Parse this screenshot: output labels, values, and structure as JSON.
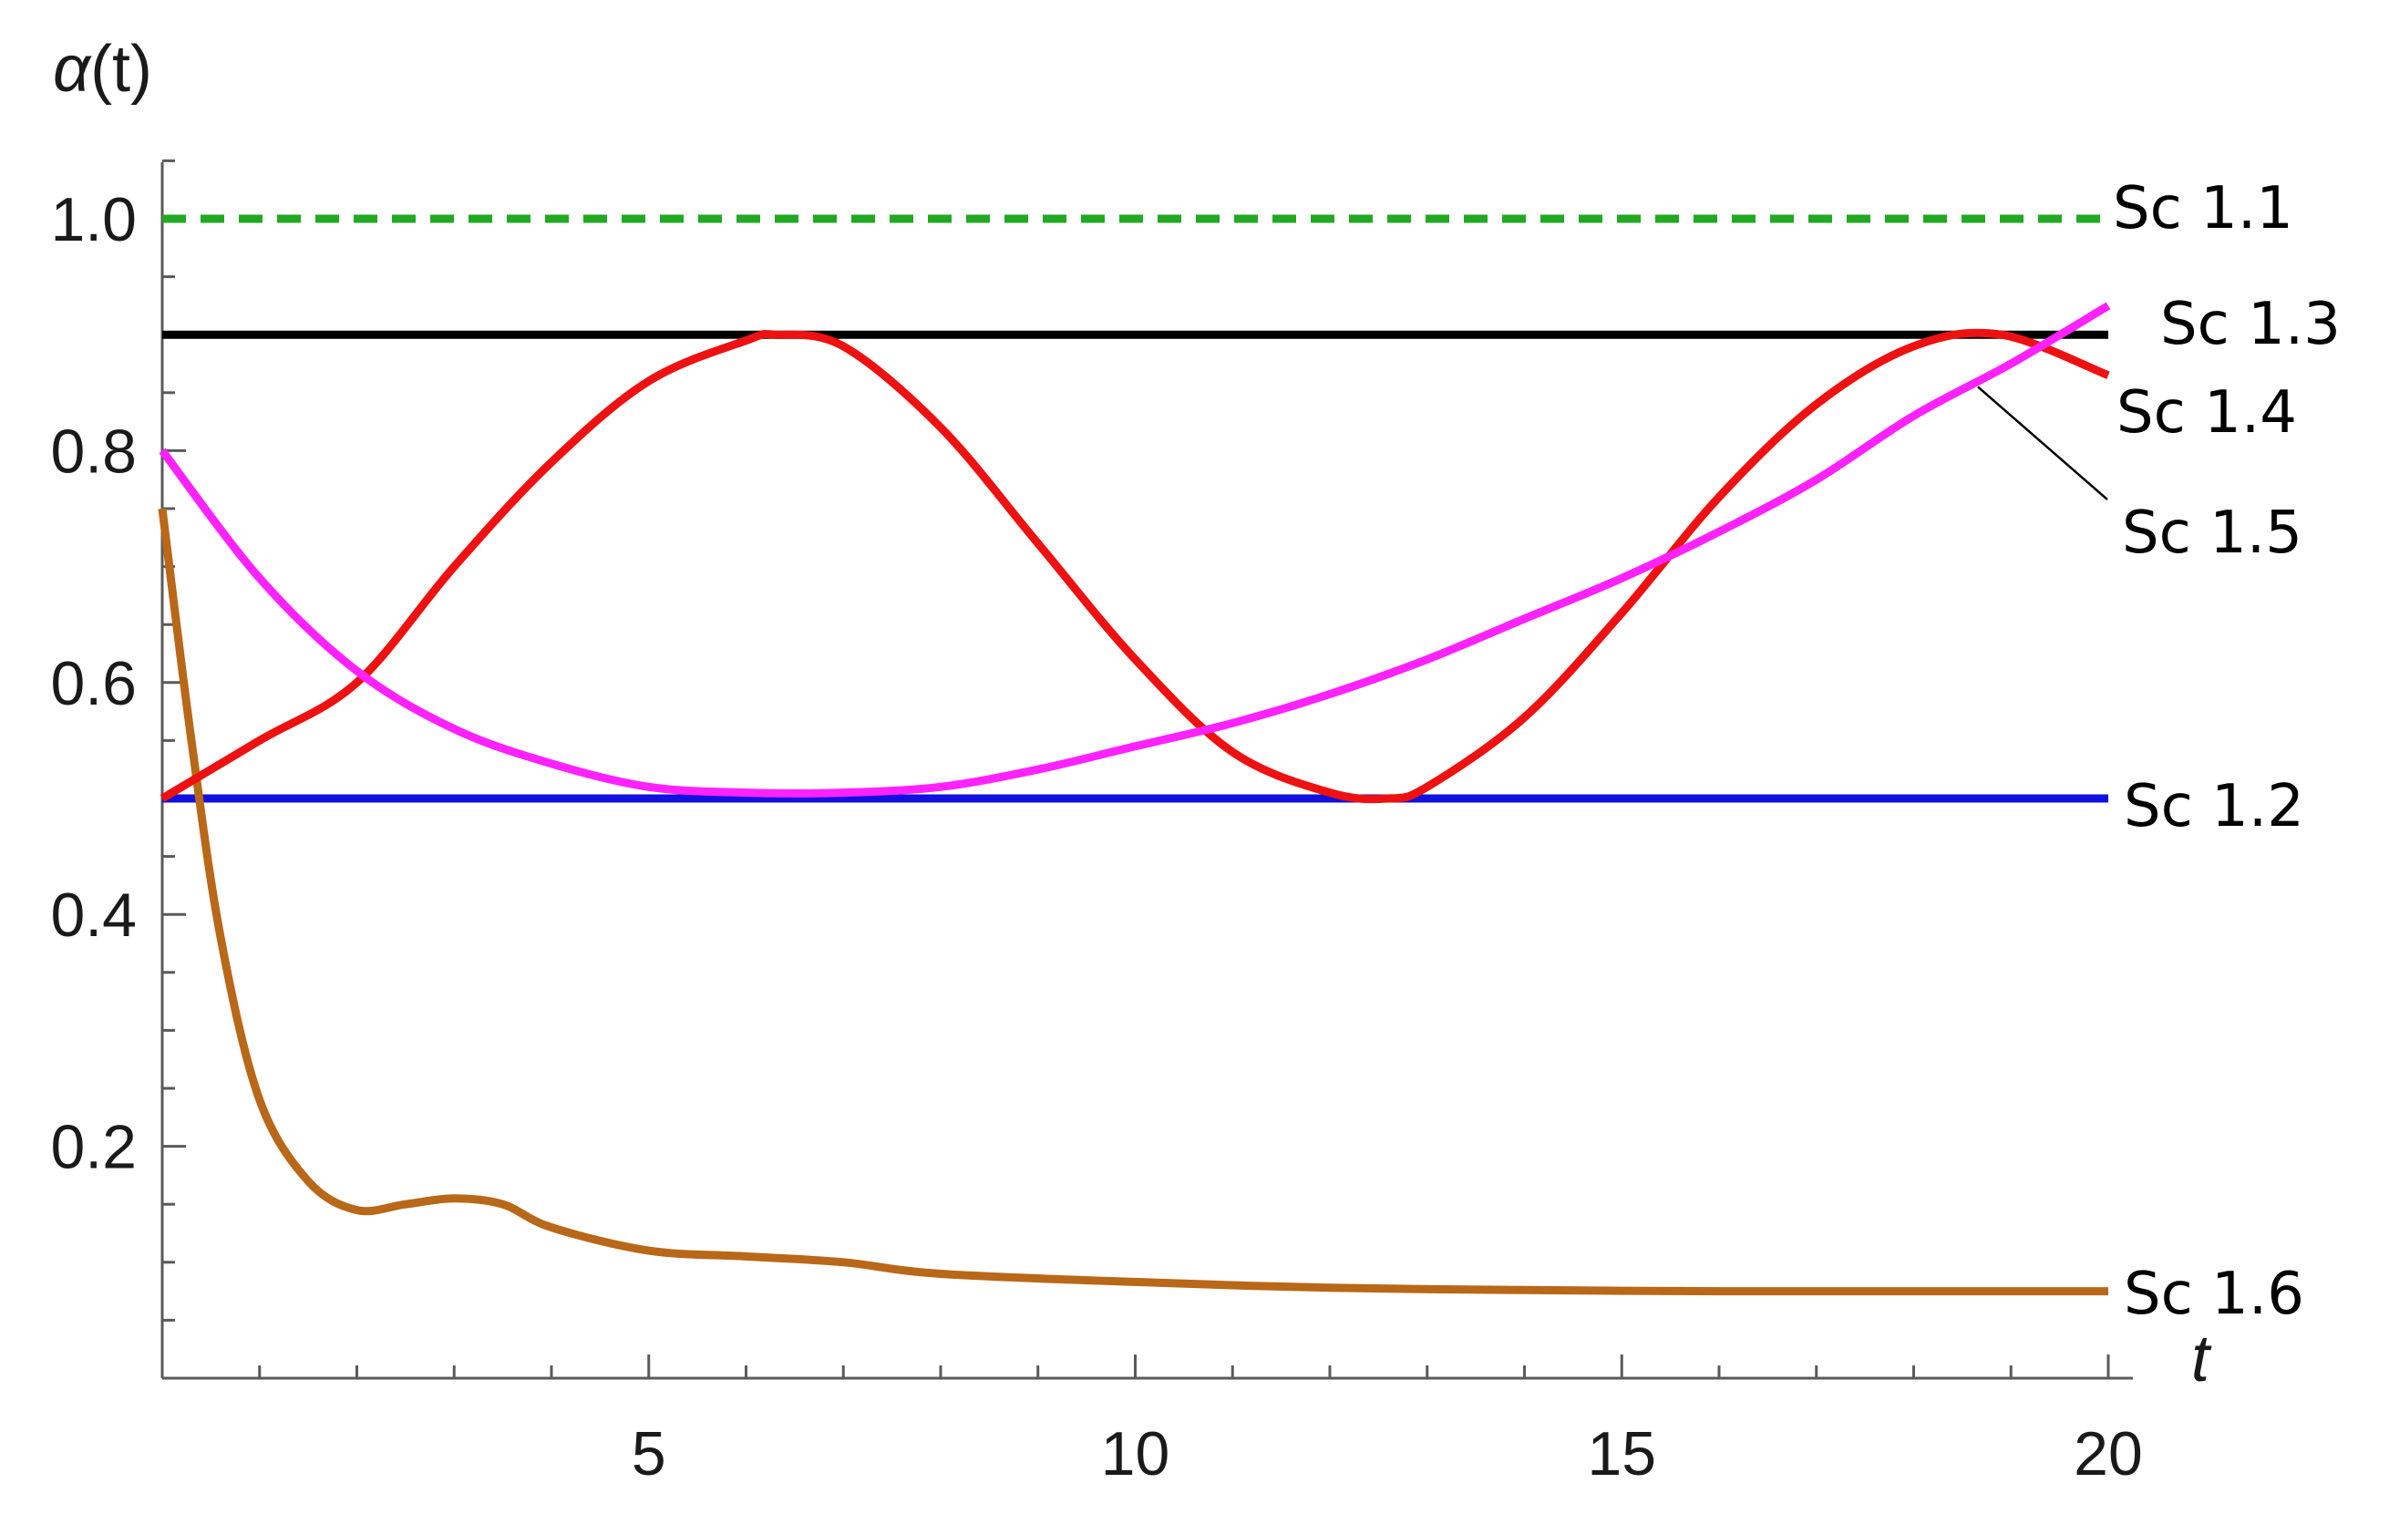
{
  "chart_data": {
    "type": "line",
    "title": "",
    "xlabel": "t",
    "ylabel": "α(t)",
    "ylabel_parts": {
      "symbol": "α",
      "arg": "(t)"
    },
    "xlim": [
      0,
      20
    ],
    "ylim": [
      0,
      1.05
    ],
    "x_ticks": [
      5,
      10,
      15,
      20
    ],
    "x_tick_labels": [
      "5",
      "10",
      "15",
      "20"
    ],
    "y_ticks": [
      0.2,
      0.4,
      0.6,
      0.8,
      1.0
    ],
    "y_tick_labels": [
      "0.2",
      "0.4",
      "0.6",
      "0.8",
      "1.0"
    ],
    "grid": false,
    "legend": "inline labels at right end of lines",
    "series": [
      {
        "name": "Sc 1.1",
        "color": "#22a822",
        "dash": "dashed",
        "x": [
          0,
          20
        ],
        "y": [
          1.0,
          1.0
        ]
      },
      {
        "name": "Sc 1.2",
        "color": "#1010e0",
        "dash": "solid",
        "x": [
          0,
          20
        ],
        "y": [
          0.5,
          0.5
        ]
      },
      {
        "name": "Sc 1.3",
        "color": "#000000",
        "dash": "solid",
        "x": [
          0,
          20
        ],
        "y": [
          0.9,
          0.9
        ]
      },
      {
        "name": "Sc 1.4",
        "color": "#ee1111",
        "dash": "solid",
        "x": [
          0,
          1,
          2,
          3,
          4,
          5,
          6,
          6.3,
          7,
          8,
          9,
          10,
          11,
          12,
          12.6,
          13,
          14,
          15,
          16,
          17,
          18,
          18.9,
          20
        ],
        "y": [
          0.5,
          0.55,
          0.6,
          0.7,
          0.79,
          0.86,
          0.895,
          0.9,
          0.89,
          0.82,
          0.72,
          0.62,
          0.54,
          0.505,
          0.5,
          0.51,
          0.57,
          0.66,
          0.76,
          0.84,
          0.89,
          0.9,
          0.865
        ]
      },
      {
        "name": "Sc 1.5",
        "color": "#ff22ff",
        "dash": "solid",
        "x": [
          0,
          1,
          2,
          3,
          4,
          5,
          6,
          7,
          8,
          9,
          10,
          11,
          12,
          13,
          14,
          15,
          16,
          17,
          18,
          19,
          20
        ],
        "y": [
          0.8,
          0.69,
          0.61,
          0.56,
          0.53,
          0.51,
          0.505,
          0.505,
          0.51,
          0.525,
          0.545,
          0.565,
          0.59,
          0.62,
          0.655,
          0.69,
          0.73,
          0.775,
          0.83,
          0.875,
          0.925
        ]
      },
      {
        "name": "Sc 1.6",
        "color": "#b86818",
        "dash": "solid",
        "x": [
          0,
          0.3,
          0.6,
          1.0,
          1.5,
          2.0,
          2.5,
          3.0,
          3.5,
          4.0,
          5.0,
          6.0,
          7.0,
          8.0,
          10.0,
          12.0,
          14.0,
          16.0,
          18.0,
          20.0
        ],
        "y": [
          0.75,
          0.55,
          0.38,
          0.24,
          0.17,
          0.145,
          0.15,
          0.155,
          0.15,
          0.13,
          0.11,
          0.105,
          0.1,
          0.09,
          0.083,
          0.078,
          0.076,
          0.075,
          0.075,
          0.075
        ]
      }
    ],
    "labels": [
      {
        "text": "Sc 1.1",
        "series": "Sc 1.1"
      },
      {
        "text": "Sc 1.3",
        "series": "Sc 1.3"
      },
      {
        "text": "Sc 1.4",
        "series": "Sc 1.4"
      },
      {
        "text": "Sc 1.5",
        "series": "Sc 1.5"
      },
      {
        "text": "Sc 1.2",
        "series": "Sc 1.2"
      },
      {
        "text": "Sc 1.6",
        "series": "Sc 1.6"
      }
    ]
  }
}
